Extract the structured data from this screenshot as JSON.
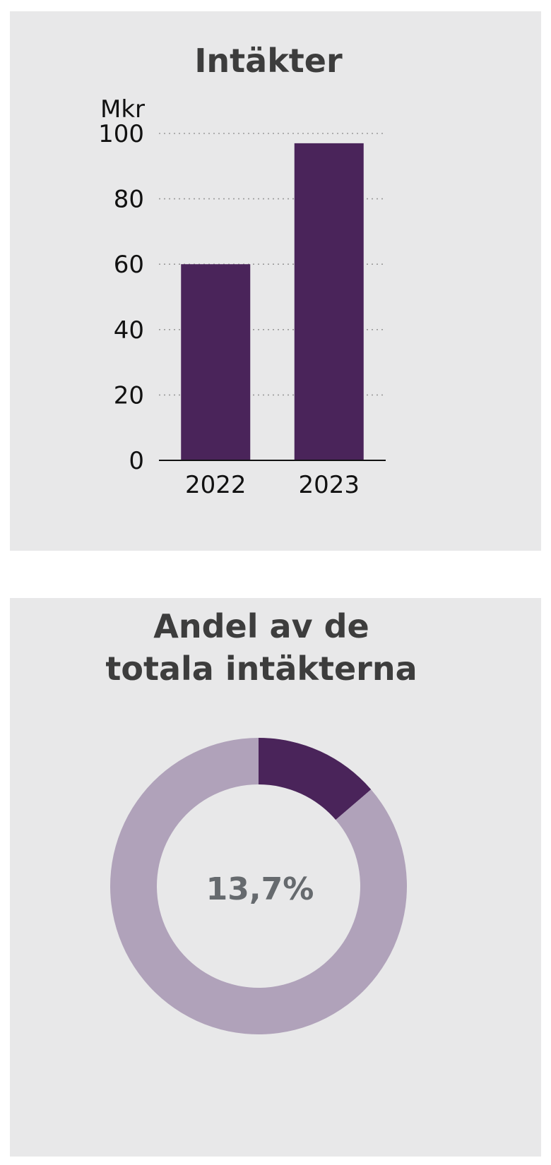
{
  "colors": {
    "panel_background": "#e8e8e9",
    "bar": "#4a245a",
    "donut_highlight": "#4a245a",
    "donut_rest": "#b0a2ba",
    "title": "#3d3d3d",
    "center_label": "#666a6e"
  },
  "chart_data": [
    {
      "type": "bar",
      "title": "Intäkter",
      "ylabel": "Mkr",
      "categories": [
        "2022",
        "2023"
      ],
      "values": [
        60,
        97
      ],
      "ylim": [
        0,
        100
      ],
      "yticks": [
        0,
        20,
        40,
        60,
        80,
        100
      ],
      "ytick_labels": [
        "0",
        "20",
        "40",
        "60",
        "80",
        "100"
      ],
      "grid": "horizontal dotted",
      "legend": "none"
    },
    {
      "type": "pie",
      "variant": "donut",
      "title_lines": [
        "Andel av de",
        "totala intäkterna"
      ],
      "slices": [
        {
          "label": "13,7%",
          "value": 13.7
        },
        {
          "label": "",
          "value": 86.3
        }
      ],
      "center_label": "13,7%",
      "legend": "none"
    }
  ]
}
